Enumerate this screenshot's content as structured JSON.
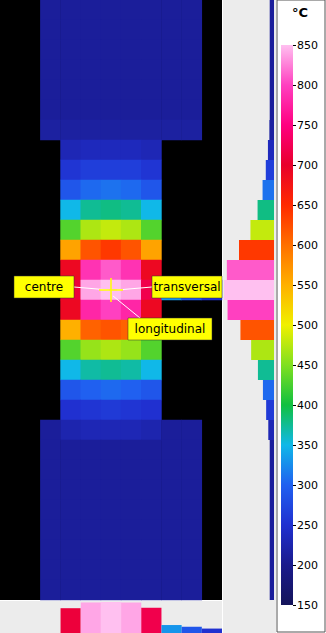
{
  "chart_data": {
    "type": "heatmap",
    "tick_labels": false,
    "annotations": [
      "centre",
      "transversal",
      "longitudinal"
    ],
    "colorbar": {
      "title": "°C",
      "range": [
        150,
        850
      ],
      "ticks": [
        150,
        200,
        250,
        300,
        350,
        400,
        450,
        500,
        550,
        600,
        650,
        700,
        750,
        800,
        850
      ]
    },
    "cells": [
      [
        null,
        null,
        210,
        210,
        210,
        210,
        210,
        210,
        210,
        210,
        null
      ],
      [
        null,
        null,
        210,
        210,
        210,
        210,
        210,
        210,
        210,
        210,
        null
      ],
      [
        null,
        null,
        210,
        210,
        210,
        210,
        210,
        210,
        210,
        210,
        null
      ],
      [
        null,
        null,
        210,
        210,
        210,
        210,
        210,
        210,
        210,
        210,
        null
      ],
      [
        null,
        null,
        210,
        210,
        210,
        210,
        210,
        210,
        210,
        210,
        null
      ],
      [
        null,
        null,
        210,
        210,
        210,
        210,
        210,
        210,
        210,
        210,
        null
      ],
      [
        null,
        null,
        215,
        215,
        215,
        215,
        215,
        215,
        215,
        215,
        null
      ],
      [
        null,
        null,
        null,
        230,
        235,
        235,
        235,
        230,
        null,
        null,
        null
      ],
      [
        null,
        null,
        null,
        255,
        265,
        265,
        265,
        255,
        null,
        null,
        null
      ],
      [
        null,
        null,
        null,
        290,
        305,
        310,
        305,
        290,
        null,
        null,
        null
      ],
      [
        null,
        null,
        null,
        350,
        375,
        380,
        375,
        350,
        null,
        null,
        null
      ],
      [
        null,
        null,
        null,
        430,
        470,
        480,
        470,
        430,
        null,
        null,
        null
      ],
      [
        null,
        null,
        null,
        560,
        620,
        640,
        620,
        560,
        null,
        null,
        null
      ],
      [
        null,
        null,
        null,
        690,
        790,
        810,
        790,
        690,
        null,
        null,
        null
      ],
      [
        null,
        null,
        null,
        710,
        840,
        850,
        840,
        720,
        330,
        290,
        250
      ],
      [
        null,
        null,
        null,
        690,
        780,
        800,
        780,
        690,
        null,
        null,
        null
      ],
      [
        null,
        null,
        null,
        550,
        610,
        620,
        610,
        550,
        null,
        null,
        null
      ],
      [
        null,
        null,
        null,
        430,
        460,
        470,
        460,
        430,
        null,
        null,
        null
      ],
      [
        null,
        null,
        null,
        350,
        370,
        375,
        370,
        350,
        null,
        null,
        null
      ],
      [
        null,
        null,
        null,
        290,
        300,
        305,
        300,
        290,
        null,
        null,
        null
      ],
      [
        null,
        null,
        null,
        250,
        255,
        260,
        255,
        250,
        null,
        null,
        null
      ],
      [
        null,
        null,
        210,
        225,
        230,
        230,
        230,
        225,
        210,
        210,
        null
      ],
      [
        null,
        null,
        210,
        210,
        210,
        210,
        210,
        210,
        210,
        210,
        null
      ],
      [
        null,
        null,
        210,
        210,
        210,
        210,
        210,
        210,
        210,
        210,
        null
      ],
      [
        null,
        null,
        210,
        210,
        210,
        210,
        210,
        210,
        210,
        210,
        null
      ],
      [
        null,
        null,
        210,
        210,
        210,
        210,
        210,
        210,
        210,
        210,
        null
      ],
      [
        null,
        null,
        210,
        210,
        210,
        210,
        210,
        210,
        210,
        210,
        null
      ],
      [
        null,
        null,
        210,
        210,
        210,
        210,
        210,
        210,
        210,
        210,
        null
      ],
      [
        null,
        null,
        210,
        210,
        210,
        210,
        210,
        210,
        210,
        210,
        null
      ],
      [
        null,
        null,
        210,
        210,
        210,
        210,
        210,
        210,
        210,
        210,
        null
      ]
    ]
  }
}
